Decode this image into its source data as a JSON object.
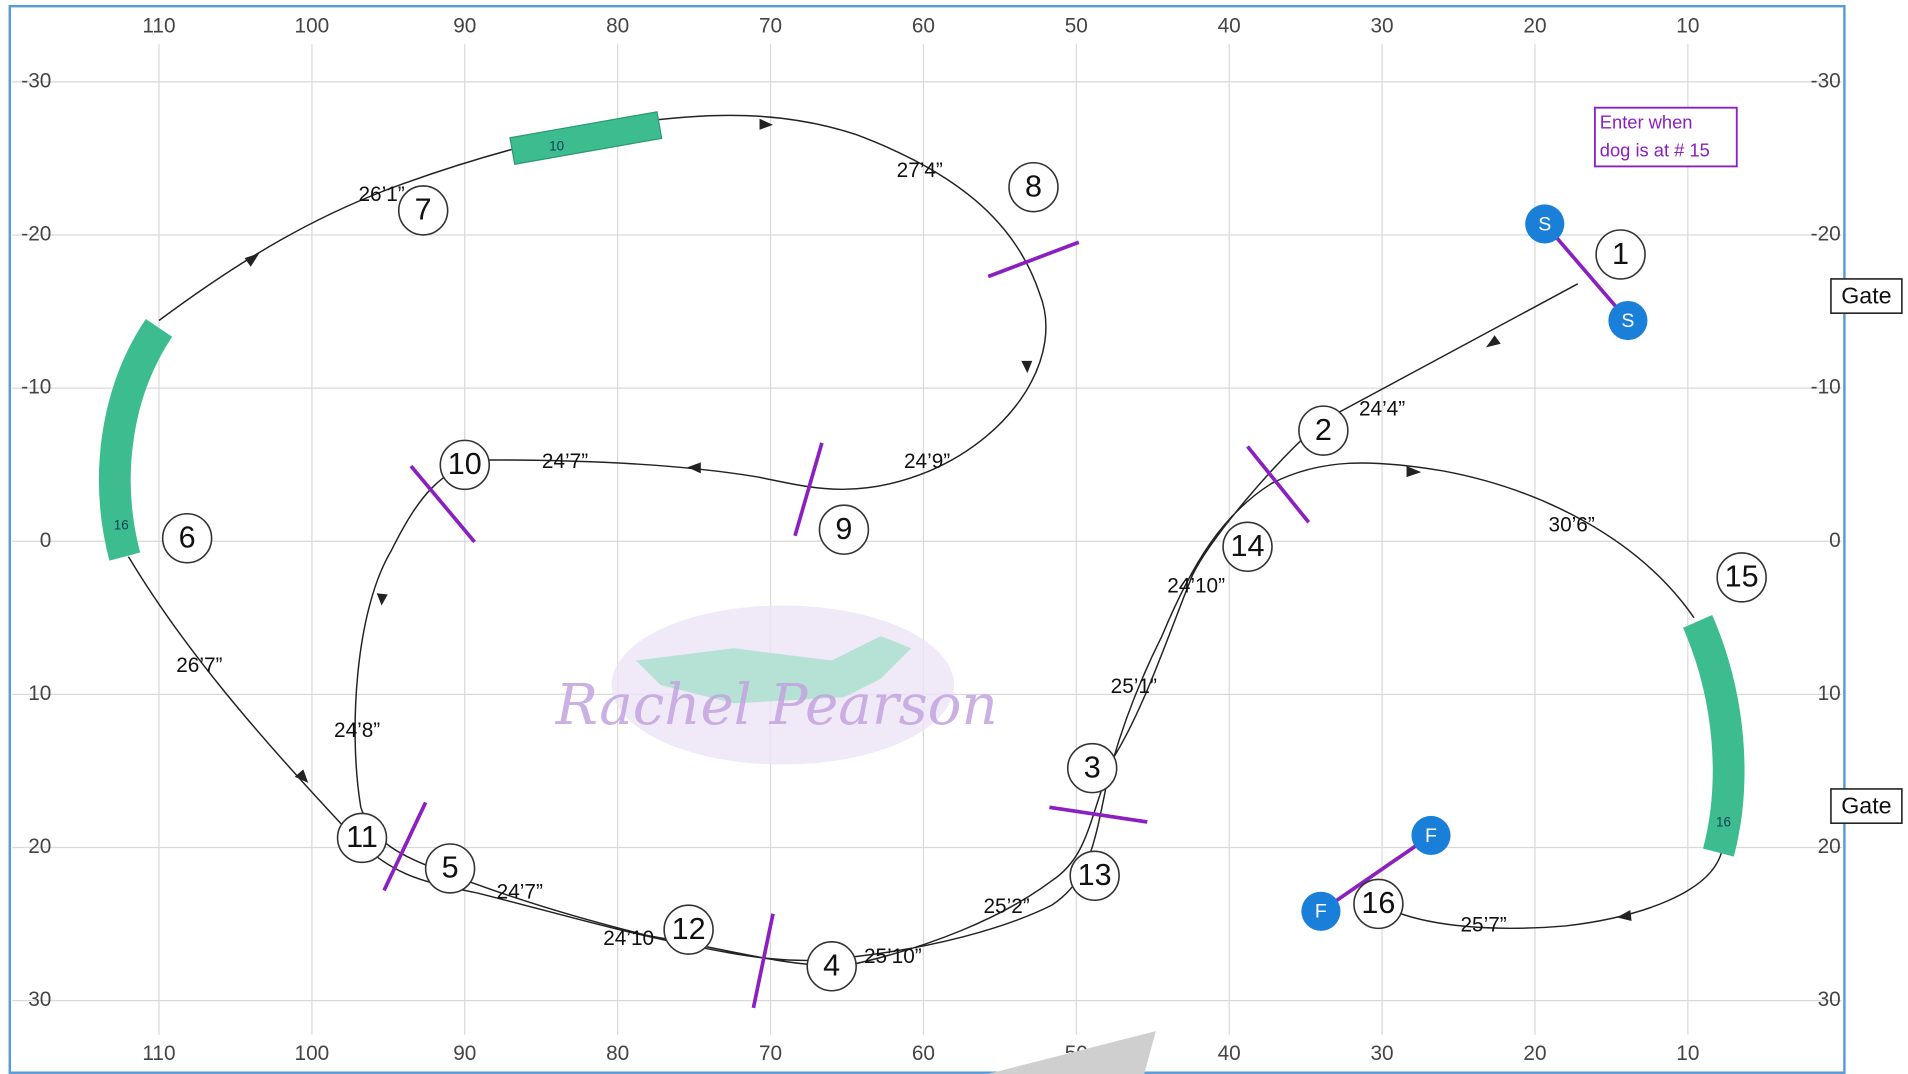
{
  "x_ticks": [
    110,
    100,
    90,
    80,
    70,
    60,
    50,
    40,
    30,
    20,
    10
  ],
  "y_ticks": [
    -30,
    -20,
    -10,
    0,
    10,
    20,
    30
  ],
  "nodes": [
    "1",
    "2",
    "3",
    "4",
    "5",
    "6",
    "7",
    "8",
    "9",
    "10",
    "11",
    "12",
    "13",
    "14",
    "15",
    "16"
  ],
  "distances": [
    "26’1”",
    "27’4”",
    "24’9”",
    "24’7”",
    "24’4”",
    "30’6”",
    "24’10”",
    "25’1”",
    "24’8”",
    "26’7”",
    "24’7”",
    "24’10",
    "25’2”",
    "25’10”",
    "25’7”"
  ],
  "note": [
    "Enter when",
    "dog is at # 15"
  ],
  "gates": [
    "Gate",
    "Gate"
  ],
  "start_label": "S",
  "finish_label": "F",
  "tunnel_labels": [
    "10",
    "16",
    "16"
  ],
  "watermark": "Rachel Pearson"
}
